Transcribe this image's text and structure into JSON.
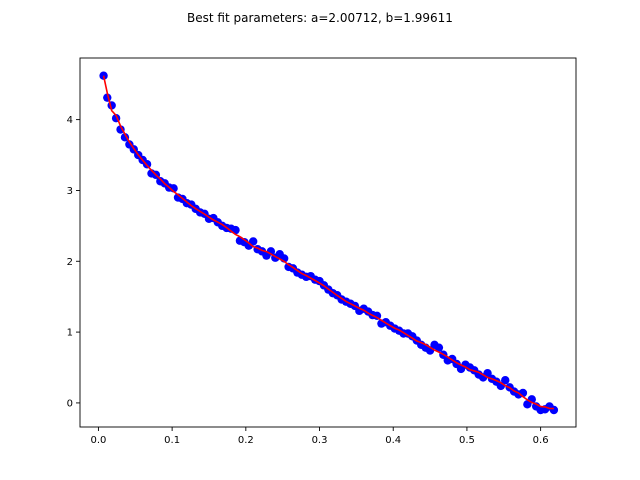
{
  "chart_data": {
    "type": "scatter",
    "title": "Best fit parameters: a=2.00712, b=1.99611",
    "xlabel": "",
    "ylabel": "",
    "xlim": [
      -0.025,
      0.648
    ],
    "ylim": [
      -0.34,
      4.87
    ],
    "x_ticks": [
      0.0,
      0.1,
      0.2,
      0.3,
      0.4,
      0.5,
      0.6
    ],
    "x_tick_labels": [
      "0.0",
      "0.1",
      "0.2",
      "0.3",
      "0.4",
      "0.5",
      "0.6"
    ],
    "y_ticks": [
      0,
      1,
      2,
      3,
      4
    ],
    "y_tick_labels": [
      "0",
      "1",
      "2",
      "3",
      "4"
    ],
    "grid": false,
    "legend": "none",
    "series": [
      {
        "kind": "points",
        "color": "#0000ff",
        "x": [
          0.007,
          0.012,
          0.018,
          0.024,
          0.03,
          0.036,
          0.042,
          0.048,
          0.054,
          0.06,
          0.066,
          0.072,
          0.078,
          0.084,
          0.09,
          0.096,
          0.102,
          0.108,
          0.114,
          0.12,
          0.126,
          0.132,
          0.138,
          0.144,
          0.15,
          0.156,
          0.162,
          0.168,
          0.174,
          0.18,
          0.186,
          0.192,
          0.198,
          0.204,
          0.21,
          0.216,
          0.222,
          0.228,
          0.234,
          0.24,
          0.246,
          0.252,
          0.258,
          0.264,
          0.27,
          0.276,
          0.282,
          0.288,
          0.294,
          0.3,
          0.306,
          0.312,
          0.318,
          0.324,
          0.33,
          0.336,
          0.342,
          0.348,
          0.354,
          0.36,
          0.366,
          0.372,
          0.378,
          0.384,
          0.39,
          0.396,
          0.402,
          0.408,
          0.414,
          0.42,
          0.426,
          0.432,
          0.438,
          0.444,
          0.45,
          0.456,
          0.462,
          0.468,
          0.474,
          0.48,
          0.486,
          0.492,
          0.498,
          0.504,
          0.51,
          0.516,
          0.522,
          0.528,
          0.534,
          0.54,
          0.546,
          0.552,
          0.558,
          0.564,
          0.57,
          0.576,
          0.582,
          0.588,
          0.594,
          0.6,
          0.606,
          0.612,
          0.618
        ],
        "y": [
          4.62,
          4.31,
          4.2,
          4.02,
          3.86,
          3.75,
          3.65,
          3.58,
          3.5,
          3.43,
          3.37,
          3.24,
          3.22,
          3.13,
          3.1,
          3.04,
          3.03,
          2.9,
          2.88,
          2.82,
          2.8,
          2.74,
          2.69,
          2.67,
          2.6,
          2.61,
          2.55,
          2.5,
          2.47,
          2.46,
          2.44,
          2.29,
          2.27,
          2.22,
          2.28,
          2.17,
          2.14,
          2.08,
          2.14,
          2.05,
          2.1,
          2.04,
          1.92,
          1.9,
          1.84,
          1.81,
          1.78,
          1.79,
          1.74,
          1.72,
          1.66,
          1.6,
          1.55,
          1.52,
          1.46,
          1.43,
          1.4,
          1.37,
          1.3,
          1.33,
          1.29,
          1.24,
          1.23,
          1.12,
          1.14,
          1.09,
          1.05,
          1.02,
          0.98,
          0.98,
          0.94,
          0.88,
          0.82,
          0.78,
          0.74,
          0.82,
          0.78,
          0.68,
          0.6,
          0.62,
          0.55,
          0.48,
          0.54,
          0.5,
          0.46,
          0.4,
          0.36,
          0.42,
          0.34,
          0.3,
          0.24,
          0.32,
          0.22,
          0.16,
          0.12,
          0.14,
          -0.02,
          0.05,
          -0.05,
          -0.1,
          -0.09,
          -0.05,
          -0.1
        ]
      },
      {
        "kind": "fit-curve",
        "color": "#ff0000",
        "a": 2.00712,
        "b": 1.99611
      }
    ]
  }
}
